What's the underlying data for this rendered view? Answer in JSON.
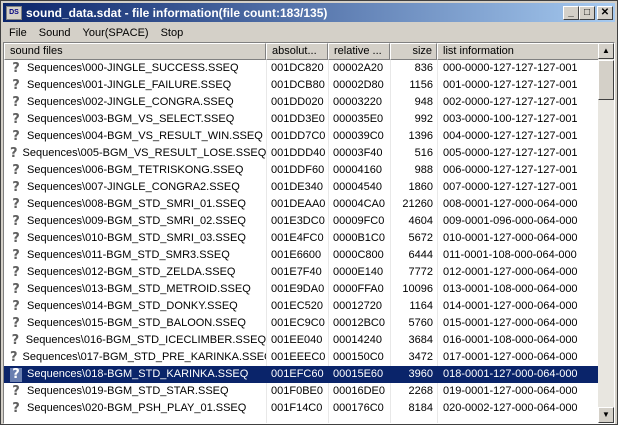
{
  "window": {
    "icon_text": "DS",
    "title": "sound_data.sdat - file information(file count:183/135)",
    "minimize": "_",
    "maximize": "□",
    "close": "✕"
  },
  "menu": [
    "File",
    "Sound",
    "Your(SPACE)",
    "Stop"
  ],
  "columns": [
    "sound files",
    "absolut...",
    "relative ...",
    "size",
    "list information"
  ],
  "row_icon": "question-icon",
  "rows": [
    {
      "name": "Sequences\\000-JINGLE_SUCCESS.SSEQ",
      "abs": "001DC820",
      "rel": "00002A20",
      "size": "836",
      "info": "000-0000-127-127-127-001"
    },
    {
      "name": "Sequences\\001-JINGLE_FAILURE.SSEQ",
      "abs": "001DCB80",
      "rel": "00002D80",
      "size": "1156",
      "info": "001-0000-127-127-127-001"
    },
    {
      "name": "Sequences\\002-JINGLE_CONGRA.SSEQ",
      "abs": "001DD020",
      "rel": "00003220",
      "size": "948",
      "info": "002-0000-127-127-127-001"
    },
    {
      "name": "Sequences\\003-BGM_VS_SELECT.SSEQ",
      "abs": "001DD3E0",
      "rel": "000035E0",
      "size": "992",
      "info": "003-0000-100-127-127-001"
    },
    {
      "name": "Sequences\\004-BGM_VS_RESULT_WIN.SSEQ",
      "abs": "001DD7C0",
      "rel": "000039C0",
      "size": "1396",
      "info": "004-0000-127-127-127-001"
    },
    {
      "name": "Sequences\\005-BGM_VS_RESULT_LOSE.SSEQ",
      "abs": "001DDD40",
      "rel": "00003F40",
      "size": "516",
      "info": "005-0000-127-127-127-001"
    },
    {
      "name": "Sequences\\006-BGM_TETRISKONG.SSEQ",
      "abs": "001DDF60",
      "rel": "00004160",
      "size": "988",
      "info": "006-0000-127-127-127-001"
    },
    {
      "name": "Sequences\\007-JINGLE_CONGRA2.SSEQ",
      "abs": "001DE340",
      "rel": "00004540",
      "size": "1860",
      "info": "007-0000-127-127-127-001"
    },
    {
      "name": "Sequences\\008-BGM_STD_SMRI_01.SSEQ",
      "abs": "001DEAA0",
      "rel": "00004CA0",
      "size": "21260",
      "info": "008-0001-127-000-064-000"
    },
    {
      "name": "Sequences\\009-BGM_STD_SMRI_02.SSEQ",
      "abs": "001E3DC0",
      "rel": "00009FC0",
      "size": "4604",
      "info": "009-0001-096-000-064-000"
    },
    {
      "name": "Sequences\\010-BGM_STD_SMRI_03.SSEQ",
      "abs": "001E4FC0",
      "rel": "0000B1C0",
      "size": "5672",
      "info": "010-0001-127-000-064-000"
    },
    {
      "name": "Sequences\\011-BGM_STD_SMR3.SSEQ",
      "abs": "001E6600",
      "rel": "0000C800",
      "size": "6444",
      "info": "011-0001-108-000-064-000"
    },
    {
      "name": "Sequences\\012-BGM_STD_ZELDA.SSEQ",
      "abs": "001E7F40",
      "rel": "0000E140",
      "size": "7772",
      "info": "012-0001-127-000-064-000"
    },
    {
      "name": "Sequences\\013-BGM_STD_METROID.SSEQ",
      "abs": "001E9DA0",
      "rel": "0000FFA0",
      "size": "10096",
      "info": "013-0001-108-000-064-000"
    },
    {
      "name": "Sequences\\014-BGM_STD_DONKY.SSEQ",
      "abs": "001EC520",
      "rel": "00012720",
      "size": "1164",
      "info": "014-0001-127-000-064-000"
    },
    {
      "name": "Sequences\\015-BGM_STD_BALOON.SSEQ",
      "abs": "001EC9C0",
      "rel": "00012BC0",
      "size": "5760",
      "info": "015-0001-127-000-064-000"
    },
    {
      "name": "Sequences\\016-BGM_STD_ICECLIMBER.SSEQ",
      "abs": "001EE040",
      "rel": "00014240",
      "size": "3684",
      "info": "016-0001-108-000-064-000"
    },
    {
      "name": "Sequences\\017-BGM_STD_PRE_KARINKA.SSEQ",
      "abs": "001EEEC0",
      "rel": "000150C0",
      "size": "3472",
      "info": "017-0001-127-000-064-000"
    },
    {
      "name": "Sequences\\018-BGM_STD_KARINKA.SSEQ",
      "abs": "001EFC60",
      "rel": "00015E60",
      "size": "3960",
      "info": "018-0001-127-000-064-000",
      "selected": true
    },
    {
      "name": "Sequences\\019-BGM_STD_STAR.SSEQ",
      "abs": "001F0BE0",
      "rel": "00016DE0",
      "size": "2268",
      "info": "019-0001-127-000-064-000"
    },
    {
      "name": "Sequences\\020-BGM_PSH_PLAY_01.SSEQ",
      "abs": "001F14C0",
      "rel": "000176C0",
      "size": "8184",
      "info": "020-0002-127-000-064-000"
    }
  ],
  "scrollbar": {
    "up": "▲",
    "down": "▼"
  }
}
